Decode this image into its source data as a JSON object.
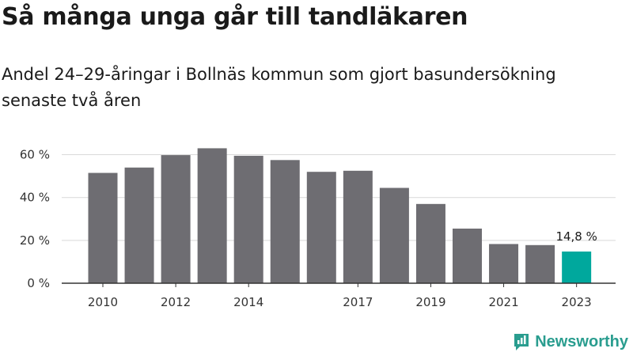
{
  "header": {
    "title": "Så många unga går till tandläkaren",
    "subtitle": "Andel 24–29-åringar i Bollnäs kommun som gjort basundersökning senaste två åren"
  },
  "brand": {
    "name": "Newsworthy",
    "color": "#2a9d8f"
  },
  "chart_data": {
    "type": "bar",
    "categories": [
      "2010",
      "2011",
      "2012",
      "2013",
      "2014",
      "2015",
      "2016",
      "2017",
      "2018",
      "2019",
      "2020",
      "2021",
      "2022",
      "2023"
    ],
    "values": [
      51.5,
      54.0,
      59.8,
      63.0,
      59.5,
      57.5,
      52.0,
      52.5,
      44.5,
      37.0,
      25.5,
      18.3,
      17.8,
      14.8
    ],
    "x_tick_labels": [
      "2010",
      "2012",
      "2014",
      "2017",
      "2019",
      "2021",
      "2023"
    ],
    "y_ticks": [
      0,
      20,
      40,
      60
    ],
    "y_tick_labels": [
      "0 %",
      "20 %",
      "40 %",
      "60 %"
    ],
    "ylim": [
      0,
      65
    ],
    "grid": true,
    "bar_color": "#6e6d72",
    "highlight_color": "#00a89d",
    "highlight_category": "2023",
    "data_labels": [
      {
        "category": "2023",
        "text": "14,8 %"
      }
    ]
  }
}
